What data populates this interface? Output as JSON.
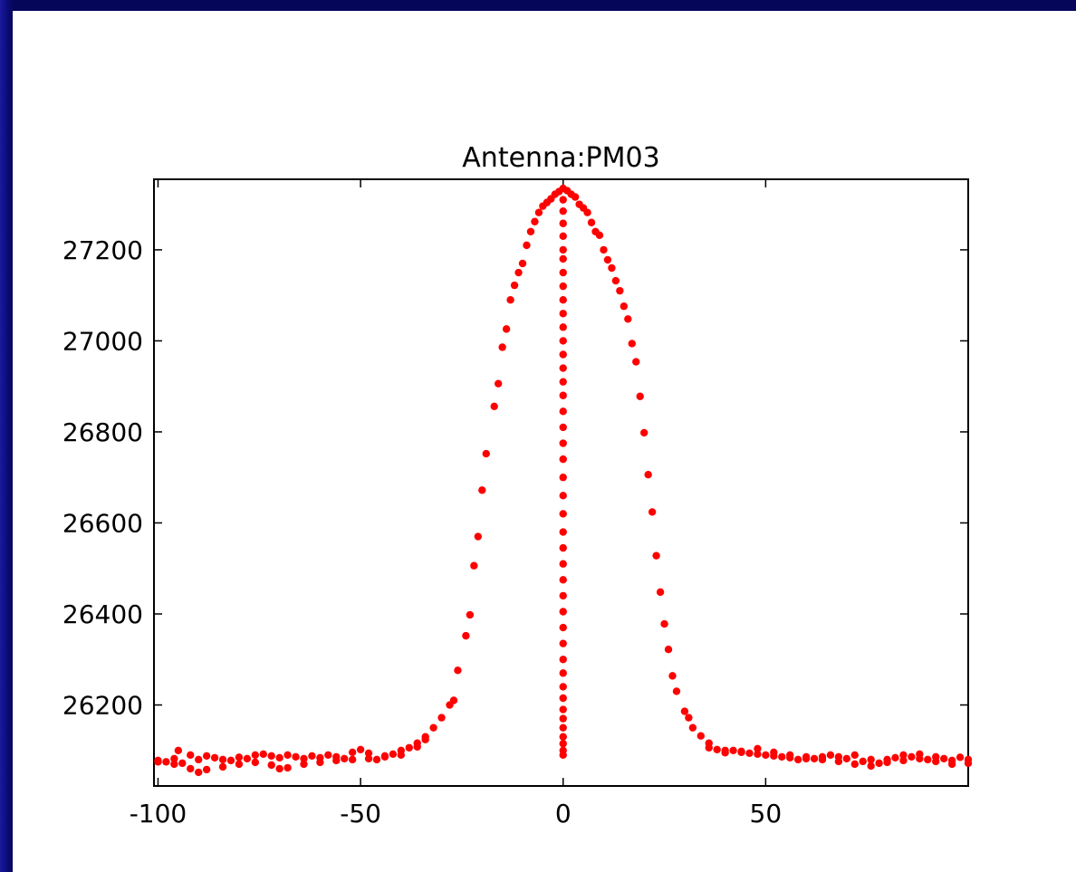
{
  "chart_data": {
    "type": "scatter",
    "title": "Antenna:PM03",
    "xlabel": "",
    "ylabel": "",
    "xlim": [
      -101,
      100
    ],
    "ylim": [
      26022,
      27355
    ],
    "xticks": [
      -100,
      -50,
      0,
      50
    ],
    "yticks": [
      26200,
      26400,
      26600,
      26800,
      27000,
      27200
    ],
    "xtick_labels": [
      "-100",
      "-50",
      "0",
      "50"
    ],
    "ytick_labels": [
      "26200",
      "26400",
      "26600",
      "26800",
      "27000",
      "27200"
    ],
    "grid": false,
    "marker_color": "#ff0000",
    "series": [
      {
        "points": [
          [
            -100,
            26078
          ],
          [
            -98,
            26075
          ],
          [
            -96,
            26082
          ],
          [
            -95,
            26100
          ],
          [
            -94,
            26072
          ],
          [
            -92,
            26090
          ],
          [
            -90,
            26080
          ],
          [
            -88,
            26088
          ],
          [
            -86,
            26084
          ],
          [
            -84,
            26080
          ],
          [
            -82,
            26078
          ],
          [
            -80,
            26085
          ],
          [
            -78,
            26082
          ],
          [
            -76,
            26090
          ],
          [
            -74,
            26092
          ],
          [
            -72,
            26088
          ],
          [
            -70,
            26084
          ],
          [
            -68,
            26090
          ],
          [
            -66,
            26086
          ],
          [
            -64,
            26082
          ],
          [
            -62,
            26088
          ],
          [
            -60,
            26084
          ],
          [
            -58,
            26090
          ],
          [
            -56,
            26086
          ],
          [
            -54,
            26082
          ],
          [
            -52,
            26096
          ],
          [
            -50,
            26102
          ],
          [
            -48,
            26094
          ],
          [
            -46,
            26080
          ],
          [
            -44,
            26088
          ],
          [
            -42,
            26092
          ],
          [
            -40,
            26100
          ],
          [
            -38,
            26106
          ],
          [
            -36,
            26116
          ],
          [
            -34,
            26130
          ],
          [
            -32,
            26150
          ],
          [
            -30,
            26172
          ],
          [
            -28,
            26200
          ],
          [
            -27,
            26210
          ],
          [
            -26,
            26276
          ],
          [
            -24,
            26352
          ],
          [
            -23,
            26398
          ],
          [
            -22,
            26506
          ],
          [
            -21,
            26570
          ],
          [
            -20,
            26672
          ],
          [
            -19,
            26752
          ],
          [
            -17,
            26856
          ],
          [
            -16,
            26906
          ],
          [
            -15,
            26986
          ],
          [
            -14,
            27026
          ],
          [
            -13,
            27090
          ],
          [
            -12,
            27122
          ],
          [
            -11,
            27150
          ],
          [
            -10,
            27170
          ],
          [
            -9,
            27210
          ],
          [
            -8,
            27240
          ],
          [
            -7,
            27262
          ],
          [
            -6,
            27282
          ],
          [
            -5,
            27296
          ],
          [
            -4,
            27304
          ],
          [
            -3,
            27312
          ],
          [
            -2,
            27322
          ],
          [
            -1,
            27328
          ],
          [
            0,
            27335
          ],
          [
            0,
            27310
          ],
          [
            0,
            27285
          ],
          [
            0,
            27258
          ],
          [
            0,
            27230
          ],
          [
            0,
            27200
          ],
          [
            0,
            27180
          ],
          [
            0,
            27150
          ],
          [
            0,
            27120
          ],
          [
            0,
            27090
          ],
          [
            0,
            27060
          ],
          [
            0,
            27030
          ],
          [
            0,
            27000
          ],
          [
            0,
            26970
          ],
          [
            0,
            26940
          ],
          [
            0,
            26910
          ],
          [
            0,
            26880
          ],
          [
            0,
            26845
          ],
          [
            0,
            26810
          ],
          [
            0,
            26775
          ],
          [
            0,
            26740
          ],
          [
            0,
            26700
          ],
          [
            0,
            26660
          ],
          [
            0,
            26620
          ],
          [
            0,
            26580
          ],
          [
            0,
            26545
          ],
          [
            0,
            26510
          ],
          [
            0,
            26475
          ],
          [
            0,
            26440
          ],
          [
            0,
            26405
          ],
          [
            0,
            26370
          ],
          [
            0,
            26335
          ],
          [
            0,
            26300
          ],
          [
            0,
            26270
          ],
          [
            0,
            26240
          ],
          [
            0,
            26215
          ],
          [
            0,
            26190
          ],
          [
            0,
            26170
          ],
          [
            0,
            26150
          ],
          [
            0,
            26130
          ],
          [
            0,
            26115
          ],
          [
            0,
            26100
          ],
          [
            0,
            26090
          ],
          [
            1,
            27330
          ],
          [
            2,
            27322
          ],
          [
            3,
            27316
          ],
          [
            4,
            27300
          ],
          [
            5,
            27292
          ],
          [
            6,
            27282
          ],
          [
            7,
            27260
          ],
          [
            8,
            27240
          ],
          [
            9,
            27232
          ],
          [
            10,
            27200
          ],
          [
            11,
            27178
          ],
          [
            12,
            27160
          ],
          [
            13,
            27132
          ],
          [
            14,
            27110
          ],
          [
            15,
            27076
          ],
          [
            16,
            27048
          ],
          [
            17,
            26994
          ],
          [
            18,
            26954
          ],
          [
            19,
            26878
          ],
          [
            20,
            26798
          ],
          [
            21,
            26706
          ],
          [
            22,
            26624
          ],
          [
            23,
            26528
          ],
          [
            24,
            26448
          ],
          [
            25,
            26378
          ],
          [
            26,
            26322
          ],
          [
            27,
            26264
          ],
          [
            28,
            26230
          ],
          [
            30,
            26186
          ],
          [
            31,
            26172
          ],
          [
            32,
            26150
          ],
          [
            34,
            26132
          ],
          [
            36,
            26116
          ],
          [
            38,
            26102
          ],
          [
            40,
            26095
          ],
          [
            42,
            26100
          ],
          [
            44,
            26098
          ],
          [
            46,
            26094
          ],
          [
            48,
            26104
          ],
          [
            50,
            26090
          ],
          [
            52,
            26096
          ],
          [
            54,
            26086
          ],
          [
            56,
            26090
          ],
          [
            58,
            26080
          ],
          [
            60,
            26086
          ],
          [
            62,
            26082
          ],
          [
            64,
            26086
          ],
          [
            66,
            26090
          ],
          [
            68,
            26086
          ],
          [
            70,
            26082
          ],
          [
            72,
            26090
          ],
          [
            74,
            26076
          ],
          [
            76,
            26080
          ],
          [
            78,
            26072
          ],
          [
            80,
            26080
          ],
          [
            82,
            26084
          ],
          [
            84,
            26090
          ],
          [
            86,
            26086
          ],
          [
            88,
            26092
          ],
          [
            90,
            26080
          ],
          [
            92,
            26086
          ],
          [
            94,
            26082
          ],
          [
            96,
            26078
          ],
          [
            98,
            26085
          ],
          [
            100,
            26080
          ],
          [
            -100,
            26075
          ],
          [
            -96,
            26070
          ],
          [
            -92,
            26060
          ],
          [
            -90,
            26052
          ],
          [
            -88,
            26058
          ],
          [
            -84,
            26064
          ],
          [
            -80,
            26070
          ],
          [
            -76,
            26074
          ],
          [
            -72,
            26068
          ],
          [
            -70,
            26060
          ],
          [
            -68,
            26062
          ],
          [
            -64,
            26070
          ],
          [
            -60,
            26074
          ],
          [
            -56,
            26078
          ],
          [
            -52,
            26080
          ],
          [
            -48,
            26082
          ],
          [
            -44,
            26086
          ],
          [
            -40,
            26090
          ],
          [
            -36,
            26108
          ],
          [
            -34,
            26124
          ],
          [
            36,
            26106
          ],
          [
            40,
            26100
          ],
          [
            44,
            26096
          ],
          [
            48,
            26092
          ],
          [
            52,
            26088
          ],
          [
            56,
            26084
          ],
          [
            60,
            26082
          ],
          [
            64,
            26080
          ],
          [
            68,
            26076
          ],
          [
            72,
            26070
          ],
          [
            76,
            26066
          ],
          [
            80,
            26074
          ],
          [
            84,
            26078
          ],
          [
            88,
            26082
          ],
          [
            92,
            26076
          ],
          [
            96,
            26070
          ],
          [
            100,
            26072
          ]
        ]
      }
    ]
  }
}
